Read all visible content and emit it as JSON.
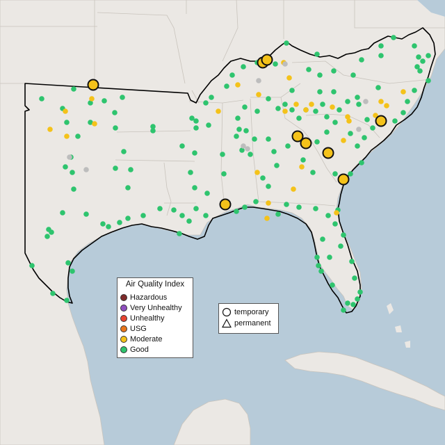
{
  "legend": {
    "title": "Air Quality Index",
    "items": [
      {
        "label": "Hazardous",
        "color": "#7e2a2a"
      },
      {
        "label": "Very Unhealthy",
        "color": "#8f4fbf"
      },
      {
        "label": "Unhealthy",
        "color": "#e8442f"
      },
      {
        "label": "USG",
        "color": "#e8761c"
      },
      {
        "label": "Moderate",
        "color": "#f4c21a"
      },
      {
        "label": "Good",
        "color": "#2ec46e"
      }
    ]
  },
  "monitor_types": [
    {
      "label": "temporary",
      "icon": "circle-icon"
    },
    {
      "label": "permanent",
      "icon": "triangle-icon"
    }
  ],
  "colors": {
    "water": "#b7cbd9",
    "land": "#ebe8e4",
    "no_data": "#bdbdbd",
    "region_outline": "#000000"
  }
}
